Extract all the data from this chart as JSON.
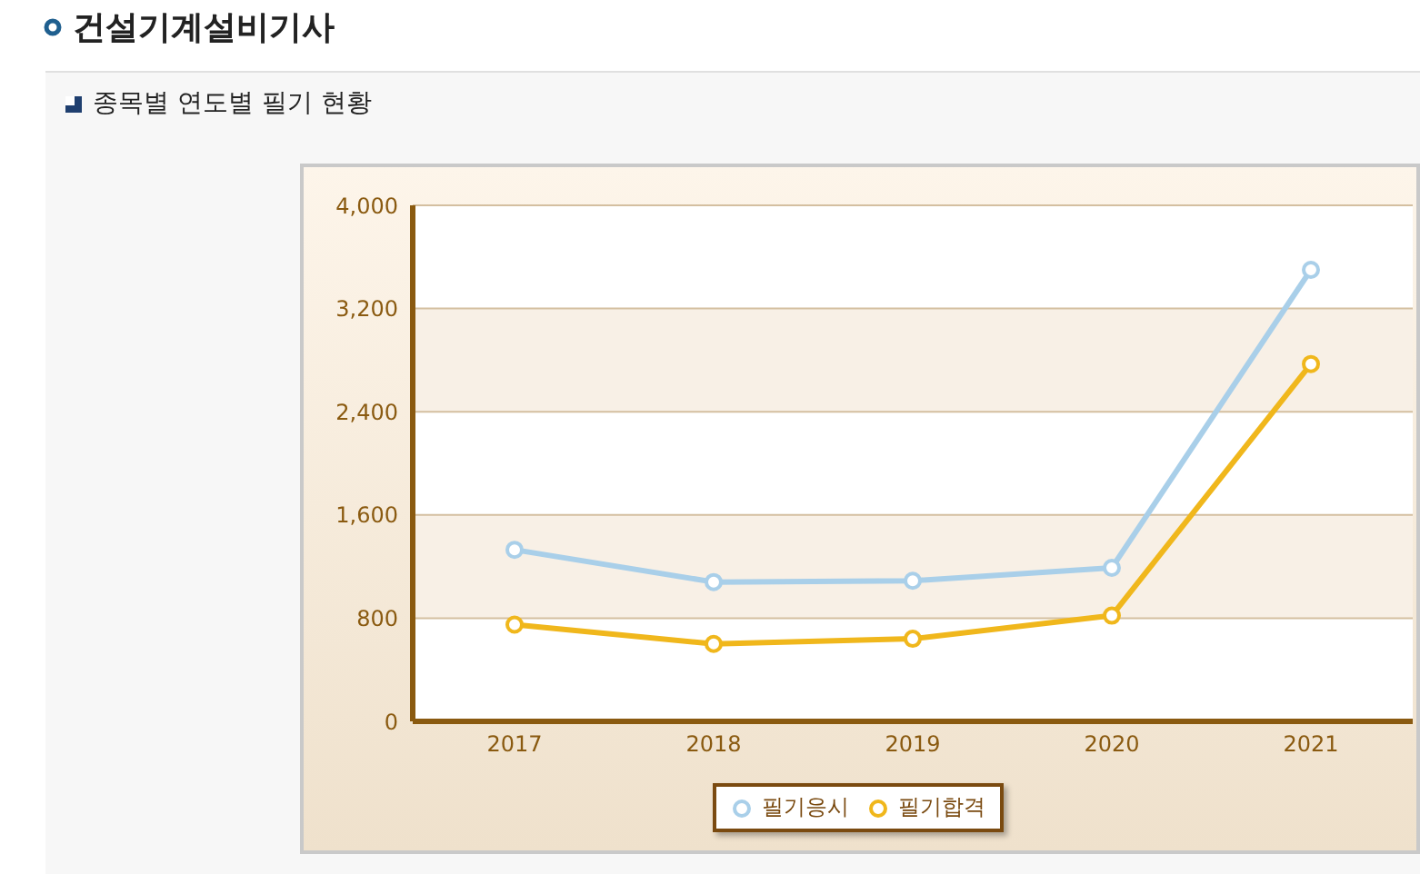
{
  "chart_data": {
    "type": "line",
    "title": "건설기계설비기사",
    "subtitle": "종목별 연도별 필기 현황",
    "categories": [
      "2017",
      "2018",
      "2019",
      "2020",
      "2021"
    ],
    "series": [
      {
        "name": "필기응시",
        "color": "#a9cfe9",
        "values": [
          1330,
          1080,
          1090,
          1190,
          3500
        ]
      },
      {
        "name": "필기합격",
        "color": "#f0b71c",
        "values": [
          750,
          600,
          640,
          820,
          2770
        ]
      }
    ],
    "ylim": [
      0,
      4000
    ],
    "yticks": [
      {
        "value": 0,
        "label": "0"
      },
      {
        "value": 800,
        "label": "800"
      },
      {
        "value": 1600,
        "label": "1,600"
      },
      {
        "value": 2400,
        "label": "2,400"
      },
      {
        "value": 3200,
        "label": "3,200"
      },
      {
        "value": 4000,
        "label": "4,000"
      }
    ],
    "grid": "y",
    "legend": "bottom",
    "marker": "circle",
    "line_style": "solid"
  }
}
